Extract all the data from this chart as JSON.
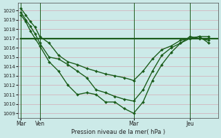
{
  "xlabel": "Pression niveau de la mer( hPa )",
  "background_color": "#cceae8",
  "grid_color": "#d4a8b4",
  "line_color": "#1a5c1a",
  "ylim": [
    1008.5,
    1020.8
  ],
  "yticks": [
    1009,
    1010,
    1011,
    1012,
    1013,
    1014,
    1015,
    1016,
    1017,
    1018,
    1019,
    1020
  ],
  "xtick_labels": [
    "Mar",
    "Ven",
    "Mar",
    "Jeu"
  ],
  "xtick_positions": [
    0,
    2,
    12,
    18
  ],
  "vline_positions": [
    0,
    2,
    12,
    18
  ],
  "xlim": [
    -0.3,
    21
  ],
  "series": [
    {
      "x": [
        0,
        21
      ],
      "y": [
        1017.0,
        1017.0
      ],
      "marker": false,
      "linewidth": 1.6
    },
    {
      "x": [
        0,
        0.5,
        1,
        1.5,
        2,
        3,
        4,
        5,
        6,
        7,
        8,
        9,
        10,
        11,
        12,
        13,
        14,
        15,
        16,
        17,
        18,
        19,
        20
      ],
      "y": [
        1020.2,
        1019.5,
        1018.8,
        1018.2,
        1017.2,
        1016.5,
        1015.2,
        1014.5,
        1014.2,
        1013.8,
        1013.5,
        1013.2,
        1013.0,
        1012.8,
        1012.5,
        1013.5,
        1014.8,
        1015.8,
        1016.2,
        1016.8,
        1017.0,
        1017.2,
        1017.2
      ],
      "marker": true,
      "linewidth": 1.0
    },
    {
      "x": [
        0,
        0.5,
        1,
        1.5,
        2,
        3,
        4,
        5,
        6,
        7,
        8,
        9,
        10,
        11,
        12,
        13,
        14,
        15,
        16,
        17,
        18,
        19,
        20
      ],
      "y": [
        1019.8,
        1019.0,
        1018.3,
        1017.5,
        1016.5,
        1015.0,
        1014.8,
        1014.2,
        1013.5,
        1012.8,
        1011.5,
        1011.2,
        1010.8,
        1010.5,
        1010.3,
        1011.5,
        1013.5,
        1015.2,
        1016.0,
        1016.5,
        1017.0,
        1017.2,
        1016.5
      ],
      "marker": true,
      "linewidth": 1.0
    },
    {
      "x": [
        0,
        0.5,
        1,
        1.5,
        2,
        3,
        4,
        5,
        6,
        7,
        8,
        9,
        10,
        11,
        12,
        13,
        14,
        15,
        16,
        17,
        18,
        19,
        20
      ],
      "y": [
        1019.5,
        1018.8,
        1017.8,
        1017.0,
        1016.2,
        1014.5,
        1013.5,
        1012.0,
        1011.0,
        1011.2,
        1011.0,
        1010.2,
        1010.2,
        1009.5,
        1009.0,
        1010.2,
        1012.5,
        1014.2,
        1015.5,
        1016.5,
        1017.2,
        1017.0,
        1016.8
      ],
      "marker": true,
      "linewidth": 1.0
    }
  ]
}
